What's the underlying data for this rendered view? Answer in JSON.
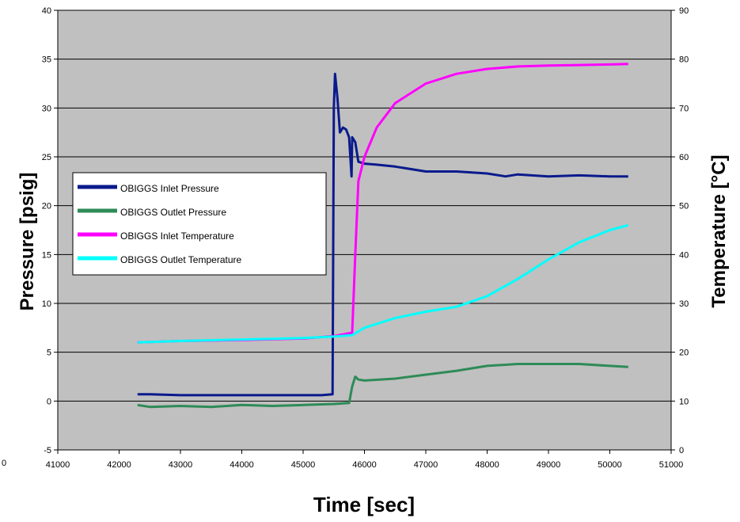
{
  "chart_data": {
    "type": "line",
    "xlabel": "Time [sec]",
    "ylabel_left": "Pressure [psig]",
    "ylabel_right": "Temperature [°C]",
    "xlim": [
      41000,
      51000
    ],
    "ylim_left": [
      -5,
      40
    ],
    "ylim_right": [
      0,
      90
    ],
    "x_ticks": [
      41000,
      42000,
      43000,
      44000,
      45000,
      46000,
      47000,
      48000,
      49000,
      50000,
      51000
    ],
    "y_left_ticks": [
      -5,
      0,
      5,
      10,
      15,
      20,
      25,
      30,
      35,
      40
    ],
    "y_right_ticks": [
      0,
      10,
      20,
      30,
      40,
      50,
      60,
      70,
      80,
      90
    ],
    "stray_label": "0",
    "grid": "horizontal",
    "plot_background": "#c0c0c0",
    "legend_placement": "left-middle",
    "series": [
      {
        "name": "OBIGGS Inlet Pressure",
        "axis": "left",
        "color": "#0a1a8c",
        "x": [
          42300,
          42500,
          43000,
          43500,
          44000,
          44500,
          45000,
          45300,
          45480,
          45500,
          45520,
          45560,
          45600,
          45650,
          45700,
          45750,
          45790,
          45800,
          45850,
          45900,
          46000,
          46200,
          46500,
          47000,
          47500,
          48000,
          48300,
          48500,
          49000,
          49500,
          50000,
          50300
        ],
        "y": [
          0.7,
          0.7,
          0.6,
          0.6,
          0.6,
          0.6,
          0.6,
          0.6,
          0.7,
          30,
          33.5,
          31,
          27.5,
          28,
          27.8,
          27,
          23,
          27,
          26.5,
          24.5,
          24.3,
          24.2,
          24,
          23.5,
          23.5,
          23.3,
          23,
          23.2,
          23,
          23.1,
          23,
          23
        ]
      },
      {
        "name": "OBIGGS Outlet Pressure",
        "axis": "left",
        "color": "#2e8b57",
        "x": [
          42300,
          42500,
          43000,
          43500,
          44000,
          44500,
          45000,
          45500,
          45750,
          45800,
          45850,
          45900,
          46000,
          46500,
          47000,
          47500,
          48000,
          48500,
          49000,
          49500,
          50000,
          50300
        ],
        "y": [
          -0.4,
          -0.6,
          -0.5,
          -0.6,
          -0.4,
          -0.5,
          -0.4,
          -0.3,
          -0.2,
          1.5,
          2.5,
          2.2,
          2.1,
          2.3,
          2.7,
          3.1,
          3.6,
          3.8,
          3.8,
          3.8,
          3.6,
          3.5
        ]
      },
      {
        "name": "OBIGGS Inlet Temperature",
        "axis": "right",
        "color": "#ff00ff",
        "x": [
          42300,
          43000,
          44000,
          45000,
          45500,
          45800,
          45850,
          45900,
          46000,
          46200,
          46500,
          47000,
          47500,
          48000,
          48500,
          49000,
          49500,
          50000,
          50300
        ],
        "y": [
          22,
          22.3,
          22.5,
          22.8,
          23.3,
          24,
          40,
          55,
          60,
          66,
          71,
          75,
          77,
          78,
          78.5,
          78.7,
          78.8,
          78.9,
          79
        ]
      },
      {
        "name": "OBIGGS Outlet Temperature",
        "axis": "right",
        "color": "#00ffff",
        "x": [
          42300,
          43000,
          44000,
          45000,
          45500,
          45800,
          46000,
          46500,
          47000,
          47500,
          48000,
          48500,
          49000,
          49500,
          50000,
          50300
        ],
        "y": [
          22,
          22.3,
          22.6,
          22.9,
          23.2,
          23.5,
          25,
          27,
          28.3,
          29.3,
          31.5,
          35,
          39,
          42.5,
          45,
          46
        ]
      }
    ]
  }
}
